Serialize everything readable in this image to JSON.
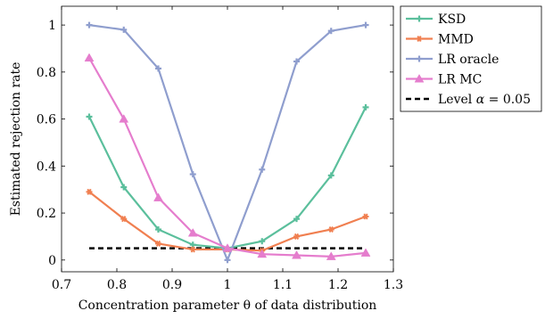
{
  "chart_data": {
    "type": "line",
    "xlabel": "Concentration parameter θ of data distribution",
    "ylabel": "Estimated rejection rate",
    "xlim": [
      0.7,
      1.3
    ],
    "ylim": [
      -0.05,
      1.08
    ],
    "x_ticks": [
      "0.7",
      "0.8",
      "0.9",
      "1",
      "1.1",
      "1.2",
      "1.3"
    ],
    "y_ticks": [
      "0",
      "0.2",
      "0.4",
      "0.6",
      "0.8",
      "1"
    ],
    "grid": false,
    "legend_position": "outside-right-top",
    "x": [
      0.75,
      0.8125,
      0.875,
      0.9375,
      1.0,
      1.0625,
      1.125,
      1.1875,
      1.25
    ],
    "series": [
      {
        "name": "KSD",
        "color": "#5bbf9c",
        "marker": "plus",
        "values": [
          0.61,
          0.31,
          0.13,
          0.065,
          0.05,
          0.08,
          0.175,
          0.36,
          0.65
        ]
      },
      {
        "name": "MMD",
        "color": "#f07f50",
        "marker": "star",
        "values": [
          0.29,
          0.175,
          0.07,
          0.045,
          0.045,
          0.04,
          0.1,
          0.13,
          0.185
        ]
      },
      {
        "name": "LR oracle",
        "color": "#8f9ece",
        "marker": "plus",
        "values": [
          1.0,
          0.98,
          0.815,
          0.365,
          0.0,
          0.385,
          0.845,
          0.975,
          1.0
        ]
      },
      {
        "name": "LR MC",
        "color": "#e57dcd",
        "marker": "triangle",
        "values": [
          0.86,
          0.6,
          0.265,
          0.115,
          0.05,
          0.025,
          0.02,
          0.015,
          0.03
        ]
      }
    ],
    "reference_line": {
      "name": "Level ",
      "math_symbol": "α",
      "math_rest": " = 0.05",
      "y": 0.05,
      "x_range": [
        0.75,
        1.25
      ],
      "color": "#000000",
      "style": "dashed"
    }
  }
}
